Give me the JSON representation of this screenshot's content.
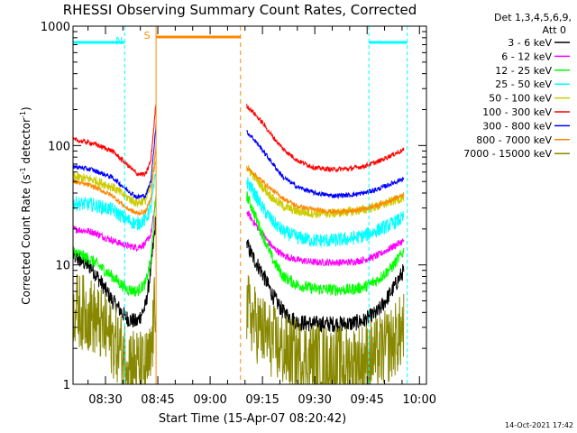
{
  "chart_data": {
    "type": "line",
    "title": "RHESSI Observing Summary Count Rates, Corrected",
    "xlabel": "Start Time (15-Apr-07 08:20:42)",
    "ylabel_main": "Corrected Count Rate (s",
    "ylabel_sup1": "-1",
    "ylabel_mid": " detector",
    "ylabel_sup2": "-1",
    "ylabel_end": ")",
    "yscale": "log",
    "ylim": [
      1,
      1000
    ],
    "xlim_minutes": [
      500.7,
      602
    ],
    "y_ticks": [
      {
        "label": "1",
        "value": 1
      },
      {
        "label": "10",
        "value": 10
      },
      {
        "label": "100",
        "value": 100
      },
      {
        "label": "1000",
        "value": 1000
      }
    ],
    "x_ticks": [
      {
        "label": "08:30",
        "value": 510
      },
      {
        "label": "08:45",
        "value": 525
      },
      {
        "label": "09:00",
        "value": 540
      },
      {
        "label": "09:15",
        "value": 555
      },
      {
        "label": "09:30",
        "value": 570
      },
      {
        "label": "09:45",
        "value": 585
      },
      {
        "label": "10:00",
        "value": 600
      }
    ],
    "legend": {
      "position": "right",
      "header1": "Det 1,3,4,5,6,9,",
      "header2": "Att 0",
      "entries": [
        {
          "label": "3 - 6 keV",
          "color": "#000000"
        },
        {
          "label": "6 - 12 keV",
          "color": "#ff00ff"
        },
        {
          "label": "12 - 25 keV",
          "color": "#00ff00"
        },
        {
          "label": "25 - 50 keV",
          "color": "#00ffff"
        },
        {
          "label": "50 - 100 keV",
          "color": "#cccc00"
        },
        {
          "label": "100 - 300 keV",
          "color": "#ff0000"
        },
        {
          "label": "300 - 800 keV",
          "color": "#0000ff"
        },
        {
          "label": "800 - 7000 keV",
          "color": "#ff8800"
        },
        {
          "label": "7000 - 15000 keV",
          "color": "#888800"
        }
      ]
    },
    "segments": [
      {
        "name": "before",
        "start": 500.7,
        "end": 524.5
      },
      {
        "name": "after",
        "start": 550.5,
        "end": 595.5
      }
    ],
    "series": [
      {
        "name": "3 - 6 keV",
        "color": "#000000",
        "noise": 0.07,
        "points": [
          [
            500.7,
            12
          ],
          [
            506,
            9.5
          ],
          [
            512,
            5
          ],
          [
            516,
            3.6
          ],
          [
            519,
            3.3
          ],
          [
            521.5,
            4.5
          ],
          [
            523,
            9
          ],
          [
            524.5,
            25
          ],
          [
            550.5,
            15
          ],
          [
            552,
            12
          ],
          [
            555,
            8.5
          ],
          [
            558,
            5.5
          ],
          [
            561,
            4
          ],
          [
            565,
            3.3
          ],
          [
            570,
            3.2
          ],
          [
            575,
            3.2
          ],
          [
            580,
            3.2
          ],
          [
            584,
            3.4
          ],
          [
            588,
            4
          ],
          [
            592,
            6
          ],
          [
            595.5,
            9
          ]
        ]
      },
      {
        "name": "6 - 12 keV",
        "color": "#ff00ff",
        "noise": 0.03,
        "points": [
          [
            500.7,
            20
          ],
          [
            506,
            19
          ],
          [
            512,
            16
          ],
          [
            516,
            14.5
          ],
          [
            519,
            14
          ],
          [
            521.5,
            15
          ],
          [
            523,
            18
          ],
          [
            524.5,
            35
          ],
          [
            550.5,
            28
          ],
          [
            552,
            24
          ],
          [
            555,
            18
          ],
          [
            558,
            14
          ],
          [
            561,
            12
          ],
          [
            565,
            11
          ],
          [
            570,
            10.5
          ],
          [
            575,
            10.5
          ],
          [
            580,
            10.5
          ],
          [
            584,
            11
          ],
          [
            588,
            12
          ],
          [
            592,
            14
          ],
          [
            595.5,
            16
          ]
        ]
      },
      {
        "name": "12 - 25 keV",
        "color": "#00ff00",
        "noise": 0.05,
        "points": [
          [
            500.7,
            13
          ],
          [
            506,
            11
          ],
          [
            512,
            8
          ],
          [
            516,
            6.3
          ],
          [
            519,
            6
          ],
          [
            521.5,
            7
          ],
          [
            523,
            11
          ],
          [
            524.5,
            40
          ],
          [
            550.5,
            38
          ],
          [
            552,
            30
          ],
          [
            555,
            18
          ],
          [
            558,
            11
          ],
          [
            561,
            8
          ],
          [
            565,
            6.8
          ],
          [
            570,
            6.3
          ],
          [
            575,
            6.2
          ],
          [
            580,
            6.2
          ],
          [
            584,
            6.5
          ],
          [
            588,
            7.5
          ],
          [
            592,
            9.5
          ],
          [
            595.5,
            13
          ]
        ]
      },
      {
        "name": "25 - 50 keV",
        "color": "#00ffff",
        "noise": 0.06,
        "points": [
          [
            500.7,
            33
          ],
          [
            506,
            32
          ],
          [
            512,
            29
          ],
          [
            516,
            24
          ],
          [
            519,
            22
          ],
          [
            521.5,
            24
          ],
          [
            523,
            30
          ],
          [
            524.5,
            60
          ],
          [
            550.5,
            50
          ],
          [
            552,
            43
          ],
          [
            555,
            30
          ],
          [
            558,
            23
          ],
          [
            561,
            19
          ],
          [
            565,
            17
          ],
          [
            570,
            16
          ],
          [
            575,
            16
          ],
          [
            580,
            16.5
          ],
          [
            584,
            17.5
          ],
          [
            588,
            19.5
          ],
          [
            592,
            22
          ],
          [
            595.5,
            25
          ]
        ]
      },
      {
        "name": "50 - 100 keV",
        "color": "#cccc00",
        "noise": 0.04,
        "points": [
          [
            500.7,
            55
          ],
          [
            506,
            52
          ],
          [
            512,
            45
          ],
          [
            516,
            37
          ],
          [
            519,
            33
          ],
          [
            521.5,
            35
          ],
          [
            523,
            45
          ],
          [
            524.5,
            80
          ],
          [
            550.5,
            65
          ],
          [
            552,
            58
          ],
          [
            555,
            45
          ],
          [
            558,
            36
          ],
          [
            561,
            31
          ],
          [
            565,
            28
          ],
          [
            570,
            27
          ],
          [
            575,
            27
          ],
          [
            580,
            28
          ],
          [
            584,
            29
          ],
          [
            588,
            31
          ],
          [
            592,
            34
          ],
          [
            595.5,
            37
          ]
        ]
      },
      {
        "name": "100 - 300 keV",
        "color": "#ff0000",
        "noise": 0.02,
        "points": [
          [
            500.7,
            112
          ],
          [
            506,
            105
          ],
          [
            512,
            90
          ],
          [
            516,
            70
          ],
          [
            519,
            58
          ],
          [
            521.5,
            57
          ],
          [
            523,
            75
          ],
          [
            524.5,
            230
          ],
          [
            550.5,
            215
          ],
          [
            552,
            195
          ],
          [
            555,
            155
          ],
          [
            558,
            118
          ],
          [
            561,
            93
          ],
          [
            565,
            75
          ],
          [
            570,
            65
          ],
          [
            575,
            63
          ],
          [
            580,
            64
          ],
          [
            584,
            67
          ],
          [
            588,
            73
          ],
          [
            592,
            83
          ],
          [
            595.5,
            92
          ]
        ]
      },
      {
        "name": "300 - 800 keV",
        "color": "#0000ff",
        "noise": 0.02,
        "points": [
          [
            500.7,
            67
          ],
          [
            506,
            63
          ],
          [
            512,
            54
          ],
          [
            516,
            43
          ],
          [
            519,
            37
          ],
          [
            521.5,
            38
          ],
          [
            523,
            50
          ],
          [
            524.5,
            150
          ],
          [
            550.5,
            130
          ],
          [
            552,
            118
          ],
          [
            555,
            92
          ],
          [
            558,
            70
          ],
          [
            561,
            54
          ],
          [
            565,
            45
          ],
          [
            570,
            40
          ],
          [
            575,
            38
          ],
          [
            580,
            38.5
          ],
          [
            584,
            40
          ],
          [
            588,
            43
          ],
          [
            592,
            48
          ],
          [
            595.5,
            53
          ]
        ]
      },
      {
        "name": "800 - 7000 keV",
        "color": "#ff8800",
        "noise": 0.02,
        "points": [
          [
            500.7,
            50
          ],
          [
            506,
            46
          ],
          [
            512,
            38
          ],
          [
            516,
            30
          ],
          [
            519,
            27
          ],
          [
            521.5,
            28
          ],
          [
            523,
            36
          ],
          [
            524.5,
            100
          ],
          [
            550.5,
            65
          ],
          [
            552,
            60
          ],
          [
            555,
            50
          ],
          [
            558,
            42
          ],
          [
            561,
            36
          ],
          [
            565,
            31
          ],
          [
            570,
            29
          ],
          [
            575,
            28
          ],
          [
            580,
            28
          ],
          [
            584,
            29.5
          ],
          [
            588,
            31.5
          ],
          [
            592,
            35
          ],
          [
            595.5,
            39
          ]
        ]
      },
      {
        "name": "7000 - 15000 keV",
        "color": "#888800",
        "noise": 0.32,
        "points": [
          [
            500.7,
            4.3
          ],
          [
            506,
            3.8
          ],
          [
            510,
            2.8
          ],
          [
            514,
            2
          ],
          [
            518,
            1.5
          ],
          [
            521,
            1.3
          ],
          [
            523,
            1.6
          ],
          [
            524.5,
            6
          ],
          [
            550.5,
            4.3
          ],
          [
            553,
            3.2
          ],
          [
            557,
            2.4
          ],
          [
            561,
            1.9
          ],
          [
            565,
            1.7
          ],
          [
            570,
            1.6
          ],
          [
            575,
            1.5
          ],
          [
            580,
            1.5
          ],
          [
            584,
            1.6
          ],
          [
            588,
            1.8
          ],
          [
            592,
            2.2
          ],
          [
            595.5,
            2.9
          ]
        ]
      }
    ],
    "annotations": [
      {
        "label": "N",
        "color": "#00ffff",
        "line_x": 515.5,
        "bar_from": 500.7,
        "bar_to": 515.5
      },
      {
        "label": "",
        "color": "#00ffff",
        "line_x": 585.5,
        "line2_x": 596.5,
        "bar_from": 585.5,
        "bar_to": 596.5
      },
      {
        "label": "S",
        "color": "#ff8800",
        "line_x": 524.5,
        "line2_x": 548.7,
        "bar_from": 524.5,
        "bar_to": 548.7
      }
    ],
    "date_stamp": "14-Oct-2021 17:42"
  }
}
